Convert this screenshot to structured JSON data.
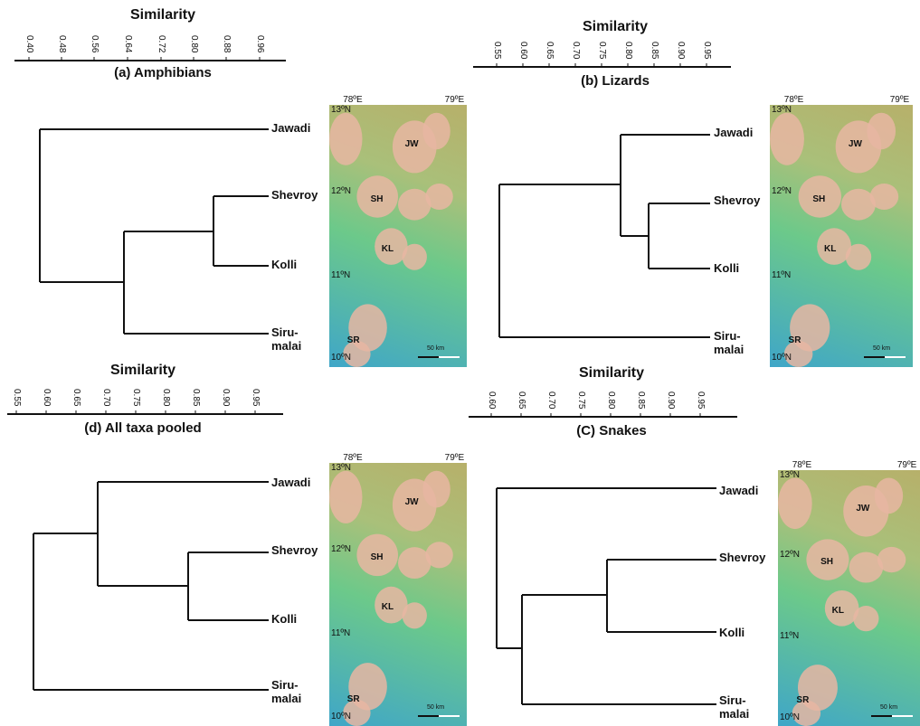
{
  "axis_title": "Similarity",
  "panels": [
    {
      "id": "a",
      "title": "(a) Amphibians",
      "ticks": [
        "0.40",
        "0.48",
        "0.56",
        "0.64",
        "0.72",
        "0.80",
        "0.88",
        "0.96"
      ],
      "leaves": [
        "Jawadi",
        "Shevroy",
        "Kolli",
        "Siru-\nmalai"
      ]
    },
    {
      "id": "b",
      "title": "(b) Lizards",
      "ticks": [
        "0.55",
        "0.60",
        "0.65",
        "0.70",
        "0.75",
        "0.80",
        "0.85",
        "0.90",
        "0.95"
      ],
      "leaves": [
        "Jawadi",
        "Shevroy",
        "Kolli",
        "Siru-\nmalai"
      ]
    },
    {
      "id": "d",
      "title": "(d) All taxa pooled",
      "ticks": [
        "0.55",
        "0.60",
        "0.65",
        "0.70",
        "0.75",
        "0.80",
        "0.85",
        "0.90",
        "0.95"
      ],
      "leaves": [
        "Jawadi",
        "Shevroy",
        "Kolli",
        "Siru-\nmalai"
      ]
    },
    {
      "id": "c",
      "title": "(C) Snakes",
      "ticks": [
        "0.60",
        "0.65",
        "0.70",
        "0.75",
        "0.80",
        "0.85",
        "0.90",
        "0.95"
      ],
      "leaves": [
        "Jawadi",
        "Shevroy",
        "Kolli",
        "Siru-\nmalai"
      ]
    }
  ],
  "map": {
    "lon_labels": [
      "78ºE",
      "79ºE"
    ],
    "lat_labels": [
      "13ºN",
      "12ºN",
      "11ºN",
      "10ºN"
    ],
    "sites": [
      "JW",
      "SH",
      "KL",
      "SR"
    ],
    "scale_label": "50 km"
  },
  "colors": {
    "line": "#111111",
    "map_low": "#3fa6c8",
    "map_mid": "#6cc98a",
    "map_high": "#b7b06a",
    "hills": "#e7b6a2"
  }
}
